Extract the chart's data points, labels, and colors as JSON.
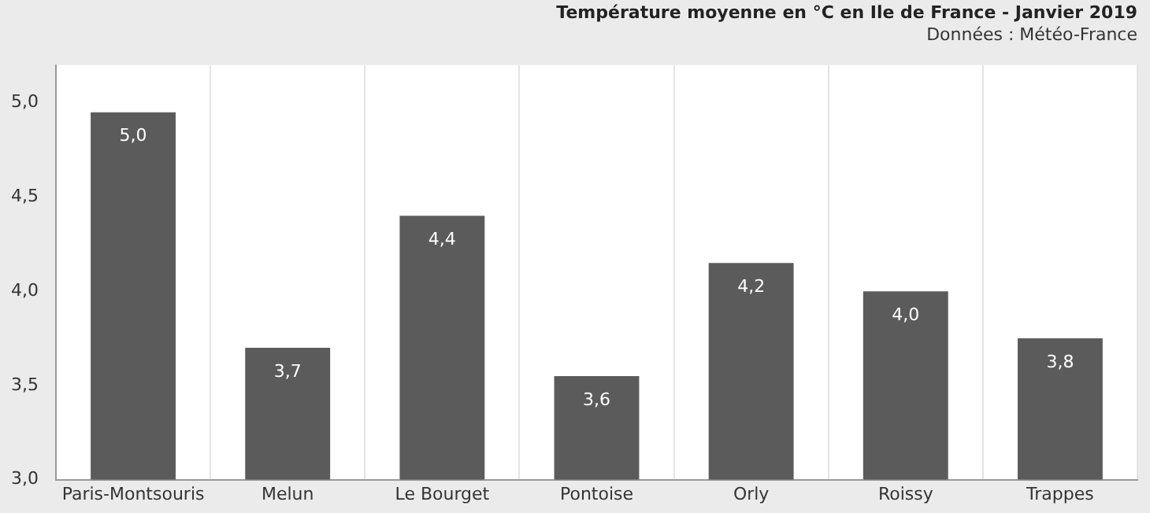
{
  "chart_data": {
    "type": "bar",
    "title": "Température moyenne en °C en Ile de France - Janvier 2019",
    "subtitle": "Données : Météo-France",
    "categories": [
      "Paris-Montsouris",
      "Melun",
      "Le Bourget",
      "Pontoise",
      "Orly",
      "Roissy",
      "Trappes"
    ],
    "values": [
      4.95,
      3.7,
      4.4,
      3.55,
      4.15,
      4.0,
      3.75
    ],
    "value_labels": [
      "5,0",
      "3,7",
      "4,4",
      "3,6",
      "4,2",
      "4,0",
      "3,8"
    ],
    "color": "#5b5b5b",
    "ylim": [
      3,
      5.2
    ],
    "yticks": [
      {
        "value": 3,
        "label": "3,0"
      },
      {
        "value": 3.5,
        "label": "3,5"
      },
      {
        "value": 4,
        "label": "4,0"
      },
      {
        "value": 4.5,
        "label": "4,5"
      },
      {
        "value": 5,
        "label": "5,0"
      }
    ],
    "grid": "x",
    "legend": false
  }
}
